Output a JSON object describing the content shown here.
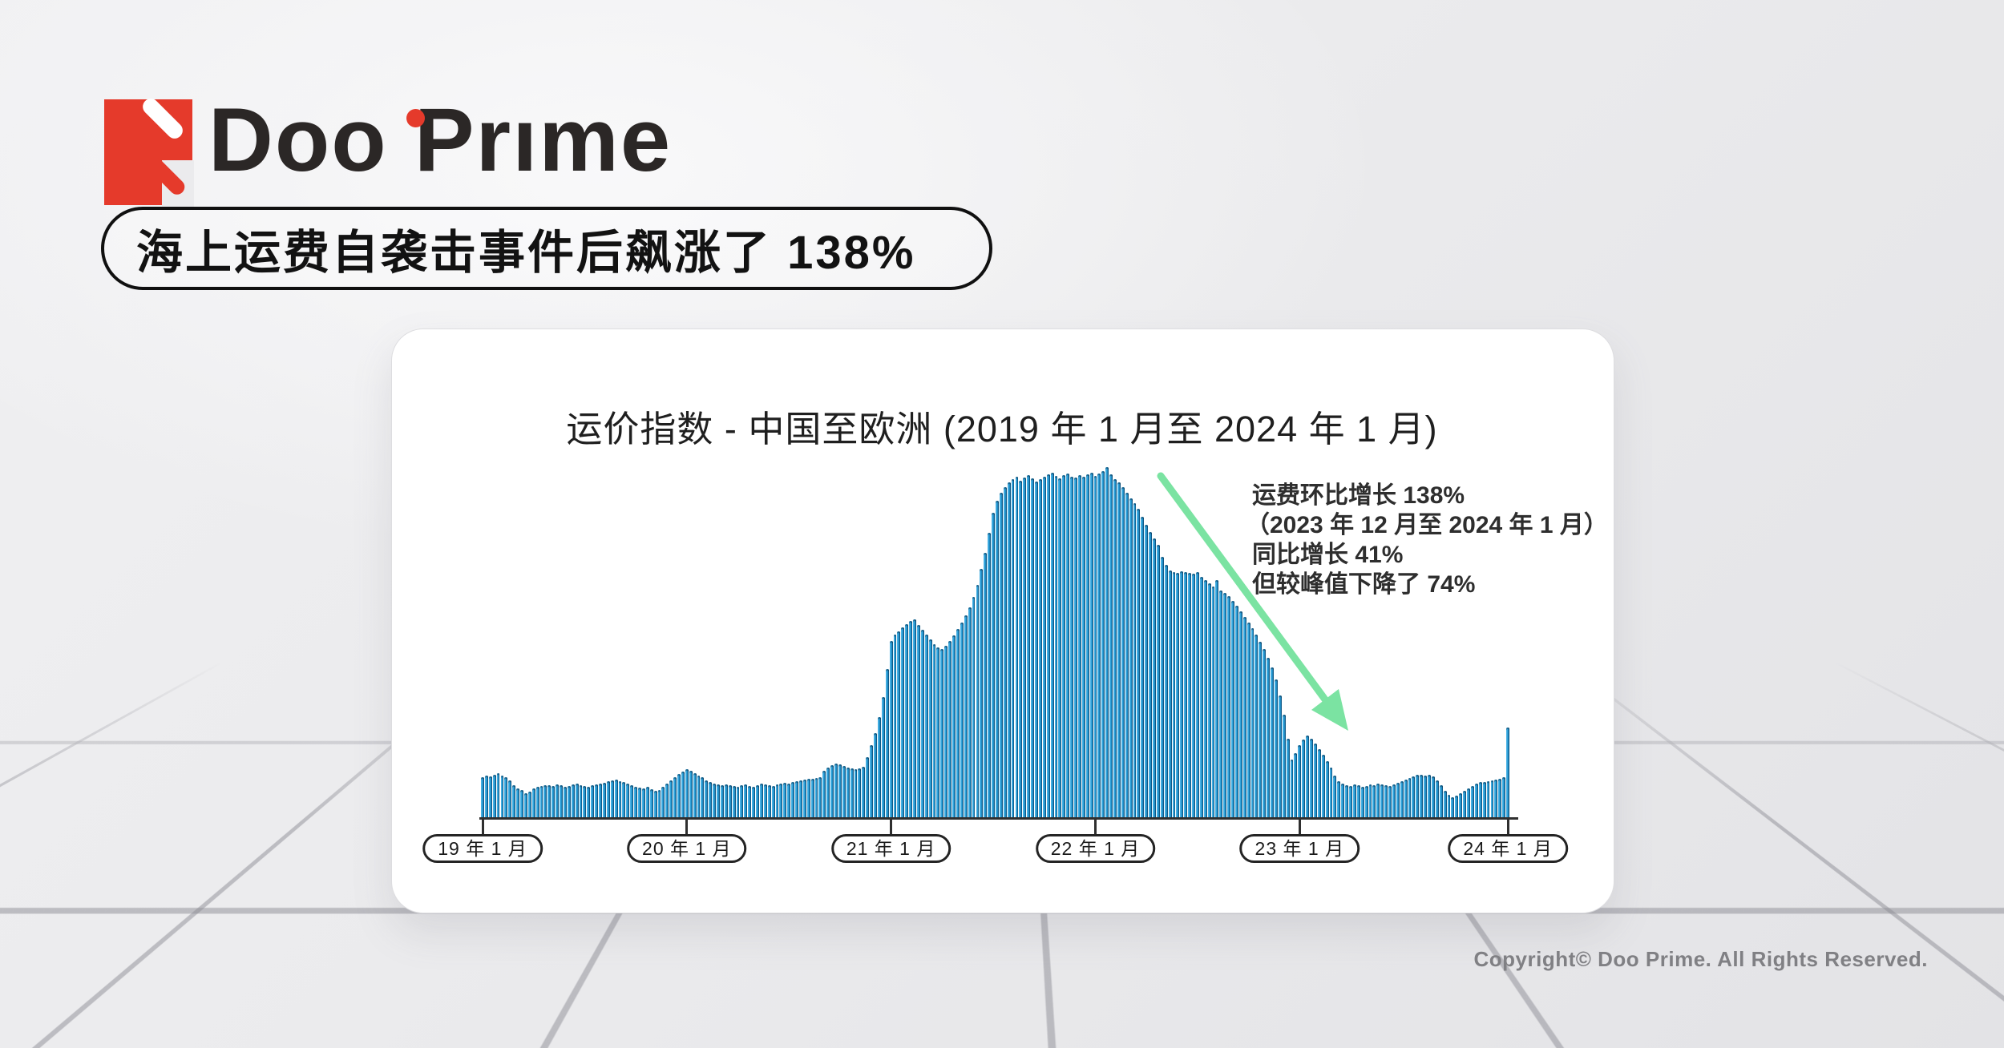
{
  "logo": {
    "brand": "Doo Prime",
    "accent_color": "#E53A2B",
    "text_color": "#2B2726"
  },
  "headline": {
    "text": "海上运费自袭击事件后飙涨了 138%"
  },
  "card": {
    "title": "运价指数 - 中国至欧洲 (2019 年 1 月至 2024 年 1 月)",
    "annotation_lines": [
      "运费环比增长 138%",
      "（2023 年 12 月至 2024 年 1 月）",
      "同比增长 41%",
      "但较峰值下降了 74%"
    ]
  },
  "footer": {
    "copyright": "Copyright© Doo Prime. All Rights Reserved."
  },
  "chart_data": {
    "type": "bar",
    "title": "运价指数 - 中国至欧洲 (2019 年 1 月至 2024 年 1 月)",
    "x_description": "weekly freight-rate index, China to Europe, Jan 2019 – Jan 2024",
    "x_tick_labels": [
      "19 年 1 月",
      "20 年 1 月",
      "21 年 1 月",
      "22 年 1 月",
      "23 年 1 月",
      "24 年 1 月"
    ],
    "tick_indices": [
      0,
      52,
      104,
      156,
      208,
      261
    ],
    "unit": "relative index (peak = 437)",
    "ylim": [
      0,
      450
    ],
    "grid": false,
    "legend": "none",
    "bar_color": "#2496D2",
    "arrow_color": "#7BE3A2",
    "annotations": [
      "运费环比增长 138%（2023 年 12 月至 2024 年 1 月）",
      "同比增长 41%",
      "但较峰值下降了 74%"
    ],
    "values": [
      50,
      52,
      51,
      53,
      55,
      52,
      50,
      46,
      40,
      36,
      34,
      30,
      32,
      36,
      38,
      39,
      40,
      40,
      39,
      41,
      40,
      38,
      39,
      41,
      42,
      40,
      39,
      38,
      40,
      41,
      42,
      43,
      45,
      46,
      47,
      45,
      44,
      42,
      40,
      38,
      37,
      36,
      38,
      35,
      33,
      34,
      38,
      42,
      46,
      50,
      54,
      57,
      60,
      58,
      55,
      52,
      50,
      46,
      44,
      42,
      41,
      40,
      41,
      40,
      39,
      38,
      40,
      41,
      39,
      38,
      40,
      42,
      41,
      40,
      39,
      41,
      42,
      43,
      42,
      44,
      45,
      46,
      47,
      48,
      48,
      49,
      50,
      58,
      62,
      65,
      67,
      66,
      64,
      62,
      61,
      60,
      61,
      63,
      75,
      90,
      105,
      125,
      150,
      185,
      220,
      228,
      232,
      237,
      241,
      245,
      247,
      240,
      234,
      228,
      222,
      216,
      212,
      210,
      214,
      220,
      227,
      235,
      243,
      252,
      262,
      275,
      290,
      310,
      330,
      355,
      380,
      395,
      405,
      412,
      418,
      422,
      425,
      420,
      424,
      427,
      423,
      419,
      422,
      425,
      428,
      430,
      426,
      423,
      427,
      429,
      425,
      424,
      427,
      425,
      428,
      430,
      426,
      429,
      432,
      437,
      428,
      422,
      418,
      412,
      405,
      398,
      392,
      385,
      375,
      365,
      356,
      348,
      340,
      325,
      315,
      308,
      306,
      305,
      307,
      306,
      305,
      304,
      306,
      300,
      296,
      292,
      288,
      296,
      283,
      280,
      276,
      270,
      264,
      257,
      250,
      243,
      236,
      228,
      219,
      210,
      199,
      187,
      172,
      152,
      128,
      98,
      72,
      80,
      90,
      97,
      102,
      98,
      92,
      85,
      78,
      70,
      62,
      52,
      45,
      42,
      40,
      39,
      41,
      40,
      38,
      39,
      41,
      40,
      42,
      41,
      40,
      39,
      41,
      43,
      45,
      47,
      49,
      51,
      53,
      53,
      52,
      53,
      51,
      46,
      40,
      33,
      28,
      25,
      27,
      30,
      33,
      36,
      39,
      42,
      44,
      44,
      45,
      46,
      47,
      48,
      50,
      112
    ]
  }
}
